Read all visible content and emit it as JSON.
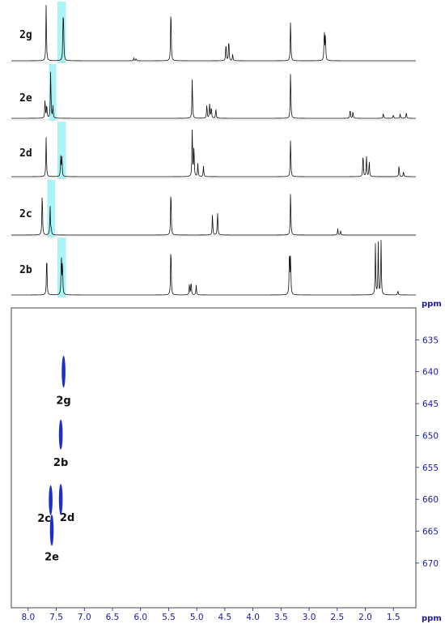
{
  "chart_data": [
    {
      "type": "line",
      "subtype": "1H NMR spectra stack",
      "x_axis": "shared with 2D plot (ppm)",
      "xlim": [
        8.3,
        1.1
      ],
      "highlight_color": "#aaf3f6",
      "line_color": "#111111",
      "spectra": [
        {
          "name": "2g",
          "highlight": [
            7.48,
            7.33
          ],
          "peaks": [
            {
              "ppm": 7.68,
              "h": 1.0
            },
            {
              "ppm": 7.38,
              "h": 0.62
            },
            {
              "ppm": 7.37,
              "h": 0.55
            },
            {
              "ppm": 6.12,
              "h": 0.05
            },
            {
              "ppm": 6.08,
              "h": 0.04
            },
            {
              "ppm": 5.46,
              "h": 1.0
            },
            {
              "ppm": 4.48,
              "h": 0.32
            },
            {
              "ppm": 4.43,
              "h": 0.4
            },
            {
              "ppm": 4.36,
              "h": 0.12
            },
            {
              "ppm": 3.33,
              "h": 0.75
            },
            {
              "ppm": 2.73,
              "h": 0.55
            },
            {
              "ppm": 2.71,
              "h": 0.48
            }
          ]
        },
        {
          "name": "2e",
          "highlight": [
            7.63,
            7.5
          ],
          "peaks": [
            {
              "ppm": 7.7,
              "h": 0.38
            },
            {
              "ppm": 7.67,
              "h": 0.28
            },
            {
              "ppm": 7.6,
              "h": 0.95
            },
            {
              "ppm": 7.56,
              "h": 0.25
            },
            {
              "ppm": 5.08,
              "h": 0.8
            },
            {
              "ppm": 4.82,
              "h": 0.28
            },
            {
              "ppm": 4.77,
              "h": 0.3
            },
            {
              "ppm": 4.74,
              "h": 0.22
            },
            {
              "ppm": 4.66,
              "h": 0.2
            },
            {
              "ppm": 3.33,
              "h": 0.95
            },
            {
              "ppm": 2.27,
              "h": 0.18
            },
            {
              "ppm": 2.22,
              "h": 0.14
            },
            {
              "ppm": 1.68,
              "h": 0.1
            },
            {
              "ppm": 1.5,
              "h": 0.07
            },
            {
              "ppm": 1.38,
              "h": 0.09
            },
            {
              "ppm": 1.27,
              "h": 0.12
            }
          ]
        },
        {
          "name": "2d",
          "highlight": [
            7.48,
            7.33
          ],
          "peaks": [
            {
              "ppm": 7.68,
              "h": 0.75
            },
            {
              "ppm": 7.42,
              "h": 0.4
            },
            {
              "ppm": 7.4,
              "h": 0.35
            },
            {
              "ppm": 5.08,
              "h": 0.92
            },
            {
              "ppm": 5.05,
              "h": 0.6
            },
            {
              "ppm": 4.98,
              "h": 0.25
            },
            {
              "ppm": 4.88,
              "h": 0.2
            },
            {
              "ppm": 3.33,
              "h": 0.75
            },
            {
              "ppm": 2.04,
              "h": 0.45
            },
            {
              "ppm": 1.98,
              "h": 0.4
            },
            {
              "ppm": 1.93,
              "h": 0.3
            },
            {
              "ppm": 1.4,
              "h": 0.22
            },
            {
              "ppm": 1.32,
              "h": 0.1
            }
          ]
        },
        {
          "name": "2c",
          "highlight": [
            7.66,
            7.52
          ],
          "peaks": [
            {
              "ppm": 7.75,
              "h": 0.85
            },
            {
              "ppm": 7.61,
              "h": 0.55
            },
            {
              "ppm": 7.59,
              "h": 0.12
            },
            {
              "ppm": 5.46,
              "h": 0.92
            },
            {
              "ppm": 4.72,
              "h": 0.4
            },
            {
              "ppm": 4.63,
              "h": 0.45
            },
            {
              "ppm": 3.33,
              "h": 0.85
            },
            {
              "ppm": 2.49,
              "h": 0.12
            },
            {
              "ppm": 2.44,
              "h": 0.08
            }
          ]
        },
        {
          "name": "2b",
          "highlight": [
            7.48,
            7.33
          ],
          "peaks": [
            {
              "ppm": 7.67,
              "h": 0.78
            },
            {
              "ppm": 7.41,
              "h": 0.75
            },
            {
              "ppm": 7.39,
              "h": 0.6
            },
            {
              "ppm": 5.46,
              "h": 0.95
            },
            {
              "ppm": 5.13,
              "h": 0.2
            },
            {
              "ppm": 5.1,
              "h": 0.25
            },
            {
              "ppm": 5.01,
              "h": 0.18
            },
            {
              "ppm": 3.35,
              "h": 0.85
            },
            {
              "ppm": 3.33,
              "h": 0.7
            },
            {
              "ppm": 1.82,
              "h": 0.92
            },
            {
              "ppm": 1.77,
              "h": 0.95
            },
            {
              "ppm": 1.72,
              "h": 1.0
            },
            {
              "ppm": 1.42,
              "h": 0.08
            }
          ]
        }
      ]
    },
    {
      "type": "scatter",
      "subtype": "2D contour plot",
      "x_unit": "ppm",
      "y_unit": "ppm",
      "xlim": [
        8.3,
        1.1
      ],
      "ylim": [
        630,
        677
      ],
      "x_ticks": [
        "8.0",
        "7.5",
        "7.0",
        "6.5",
        "6.0",
        "5.5",
        "5.0",
        "4.5",
        "4.0",
        "3.5",
        "3.0",
        "2.5",
        "2.0",
        "1.5"
      ],
      "x_tick_values": [
        8.0,
        7.5,
        7.0,
        6.5,
        6.0,
        5.5,
        5.0,
        4.5,
        4.0,
        3.5,
        3.0,
        2.5,
        2.0,
        1.5
      ],
      "y_ticks": [
        "635",
        "640",
        "645",
        "650",
        "655",
        "660",
        "665",
        "670"
      ],
      "y_tick_values": [
        635,
        640,
        645,
        650,
        655,
        660,
        665,
        670
      ],
      "marker_color": "#1e2fc8",
      "axis_color": "#1a1aa8",
      "points": [
        {
          "label": "2g",
          "x": 7.37,
          "y": 640.0,
          "y_span": [
            637.5,
            642.5
          ]
        },
        {
          "label": "2b",
          "x": 7.42,
          "y": 649.8,
          "y_span": [
            647.5,
            652.2
          ]
        },
        {
          "label": "2c",
          "x": 7.6,
          "y": 660.2,
          "y_span": [
            657.8,
            662.5
          ]
        },
        {
          "label": "2d",
          "x": 7.42,
          "y": 660.0,
          "y_span": [
            657.6,
            662.4
          ]
        },
        {
          "label": "2e",
          "x": 7.58,
          "y": 664.8,
          "y_span": [
            662.4,
            667.3
          ]
        }
      ]
    }
  ]
}
